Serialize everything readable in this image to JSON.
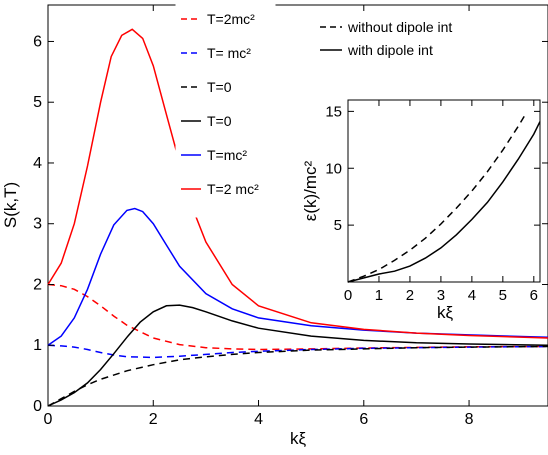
{
  "chart_data": [
    {
      "type": "line",
      "xlabel": "kξ",
      "ylabel": "S(k,T)",
      "xlim": [
        0,
        9.5
      ],
      "ylim": [
        0,
        6.6
      ],
      "xticks": [
        "0",
        "2",
        "4",
        "6",
        "8"
      ],
      "xtick_values": [
        0,
        2,
        4,
        6,
        8
      ],
      "yticks": [
        "0",
        "1",
        "2",
        "3",
        "4",
        "5",
        "6"
      ],
      "ytick_values": [
        0,
        1,
        2,
        3,
        4,
        5,
        6
      ],
      "grid": false,
      "legend_left_position": "top-center",
      "legend_left": [
        {
          "label": "T=2mc²",
          "color": "#ff0000",
          "dash": "dashed"
        },
        {
          "label": "T= mc²",
          "color": "#0000ff",
          "dash": "dashed"
        },
        {
          "label": "T=0",
          "color": "#000000",
          "dash": "dashed"
        },
        {
          "label": "T=0",
          "color": "#000000",
          "dash": "solid"
        },
        {
          "label": "T=mc²",
          "color": "#0000ff",
          "dash": "solid"
        },
        {
          "label": "T=2 mc²",
          "color": "#ff0000",
          "dash": "solid"
        }
      ],
      "legend_right_position": "top-right",
      "legend_right": [
        {
          "label": "without dipole int",
          "color": "#000000",
          "dash": "dashed"
        },
        {
          "label": "with dipole int",
          "color": "#000000",
          "dash": "solid"
        }
      ],
      "series": [
        {
          "legend_index": 0,
          "color": "#ff0000",
          "dash": "dashed",
          "x": [
            0,
            0.25,
            0.5,
            0.75,
            1.0,
            1.25,
            1.5,
            2.0,
            2.5,
            3.0,
            3.5,
            4.0,
            5.0,
            6.0,
            7.0,
            8.0,
            9.5
          ],
          "y": [
            2.0,
            1.98,
            1.92,
            1.8,
            1.65,
            1.48,
            1.33,
            1.12,
            1.01,
            0.96,
            0.94,
            0.93,
            0.94,
            0.955,
            0.965,
            0.975,
            0.98
          ]
        },
        {
          "legend_index": 1,
          "color": "#0000ff",
          "dash": "dashed",
          "x": [
            0,
            0.25,
            0.5,
            0.75,
            1.0,
            1.25,
            1.5,
            2.0,
            2.5,
            3.0,
            3.5,
            4.0,
            5.0,
            6.0,
            7.0,
            8.0,
            9.5
          ],
          "y": [
            1.0,
            0.99,
            0.97,
            0.93,
            0.88,
            0.84,
            0.81,
            0.8,
            0.82,
            0.85,
            0.88,
            0.9,
            0.93,
            0.95,
            0.96,
            0.97,
            0.98
          ]
        },
        {
          "legend_index": 2,
          "color": "#000000",
          "dash": "dashed",
          "x": [
            0,
            0.25,
            0.5,
            0.75,
            1.0,
            1.5,
            2.0,
            2.5,
            3.0,
            3.5,
            4.0,
            5.0,
            6.0,
            7.0,
            8.0,
            9.5
          ],
          "y": [
            0.0,
            0.12,
            0.24,
            0.35,
            0.44,
            0.58,
            0.68,
            0.76,
            0.81,
            0.85,
            0.88,
            0.92,
            0.94,
            0.96,
            0.97,
            0.98
          ]
        },
        {
          "legend_index": 3,
          "color": "#000000",
          "dash": "solid",
          "x": [
            0,
            0.25,
            0.5,
            0.75,
            1.0,
            1.25,
            1.5,
            1.75,
            2.0,
            2.25,
            2.5,
            2.75,
            3.0,
            3.5,
            4.0,
            5.0,
            6.0,
            7.0,
            8.0,
            9.5
          ],
          "y": [
            0.0,
            0.1,
            0.22,
            0.38,
            0.6,
            0.86,
            1.13,
            1.38,
            1.55,
            1.65,
            1.66,
            1.62,
            1.55,
            1.4,
            1.28,
            1.15,
            1.08,
            1.04,
            1.02,
            1.0
          ]
        },
        {
          "legend_index": 4,
          "color": "#0000ff",
          "dash": "solid",
          "x": [
            0,
            0.25,
            0.5,
            0.75,
            1.0,
            1.25,
            1.5,
            1.65,
            1.8,
            2.0,
            2.25,
            2.5,
            3.0,
            3.5,
            4.0,
            5.0,
            6.0,
            7.0,
            8.0,
            9.5
          ],
          "y": [
            1.0,
            1.15,
            1.45,
            1.92,
            2.5,
            2.98,
            3.22,
            3.25,
            3.2,
            3.0,
            2.65,
            2.3,
            1.85,
            1.6,
            1.45,
            1.32,
            1.25,
            1.2,
            1.17,
            1.13
          ]
        },
        {
          "legend_index": 5,
          "color": "#ff0000",
          "dash": "solid",
          "x": [
            0,
            0.25,
            0.5,
            0.75,
            1.0,
            1.2,
            1.4,
            1.6,
            1.8,
            2.0,
            2.25,
            2.5,
            2.75,
            3.0,
            3.5,
            4.0,
            5.0,
            6.0,
            7.0,
            8.0,
            9.5
          ],
          "y": [
            2.0,
            2.35,
            3.0,
            3.95,
            5.0,
            5.75,
            6.1,
            6.2,
            6.05,
            5.6,
            4.8,
            4.0,
            3.25,
            2.7,
            2.0,
            1.65,
            1.37,
            1.26,
            1.2,
            1.16,
            1.12
          ]
        }
      ]
    },
    {
      "type": "line",
      "xlabel": "kξ",
      "ylabel": "ε(k)/mc²",
      "xlim": [
        0,
        6.2
      ],
      "ylim": [
        0,
        16
      ],
      "xticks": [
        "0",
        "1",
        "2",
        "3",
        "4",
        "5",
        "6"
      ],
      "xtick_values": [
        0,
        1,
        2,
        3,
        4,
        5,
        6
      ],
      "yticks": [
        "5",
        "10",
        "15"
      ],
      "ytick_values": [
        5,
        10,
        15
      ],
      "grid": false,
      "series": [
        {
          "color": "#000000",
          "dash": "dashed",
          "x": [
            0,
            0.5,
            1.0,
            1.5,
            2.0,
            2.5,
            3.0,
            3.5,
            4.0,
            4.5,
            5.0,
            5.5,
            5.7
          ],
          "y": [
            0,
            0.5,
            1.1,
            1.9,
            2.8,
            3.85,
            5.1,
            6.5,
            8.0,
            9.7,
            11.6,
            13.7,
            14.6
          ]
        },
        {
          "color": "#000000",
          "dash": "solid",
          "x": [
            0,
            0.5,
            1.0,
            1.5,
            2.0,
            2.5,
            3.0,
            3.5,
            4.0,
            4.5,
            5.0,
            5.5,
            6.0,
            6.2
          ],
          "y": [
            0,
            0.35,
            0.7,
            0.95,
            1.4,
            2.1,
            3.0,
            4.15,
            5.5,
            7.0,
            8.8,
            10.8,
            13.0,
            14.1
          ]
        }
      ]
    }
  ]
}
